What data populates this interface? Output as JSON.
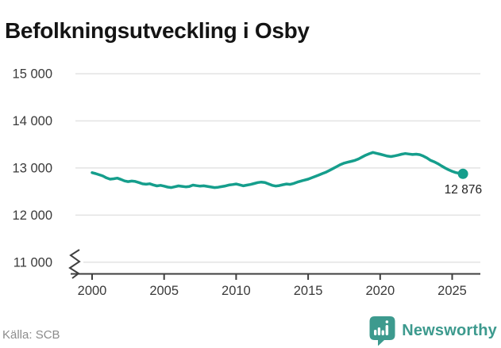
{
  "header": {
    "title": "Befolkningsutveckling i Osby"
  },
  "source": {
    "label": "Källa: SCB"
  },
  "branding": {
    "name": "Newsworthy",
    "logo_icon": "speech-bubble-bar-chart-icon"
  },
  "colors": {
    "line": "#159E8C",
    "end_dot": "#159E8C",
    "grid": "#E3E3E3",
    "axis": "#3F3F3F",
    "tick_label": "#3A3A3A",
    "end_label": "#222222",
    "title": "#141414",
    "source_text": "#8C8C8C",
    "brand_teal": "#3D9A8E"
  },
  "chart_data": {
    "type": "line",
    "title": "Befolkningsutveckling i Osby",
    "xlabel": "",
    "ylabel": "",
    "x_ticks": [
      2000,
      2005,
      2010,
      2015,
      2020,
      2025
    ],
    "y_ticks": [
      {
        "label": "15 000",
        "value": 15000
      },
      {
        "label": "14 000",
        "value": 14000
      },
      {
        "label": "13 000",
        "value": 13000
      },
      {
        "label": "12 000",
        "value": 12000
      },
      {
        "label": "11 000",
        "value": 11000
      }
    ],
    "ylim": [
      11000,
      15000
    ],
    "xlim": [
      2000,
      2025.75
    ],
    "axis_break": true,
    "grid": "horizontal",
    "legend": "none",
    "series": [
      {
        "x_start": 2000,
        "x_step": 0.25,
        "values": [
          12900,
          12880,
          12855,
          12830,
          12790,
          12762,
          12772,
          12785,
          12758,
          12726,
          12710,
          12722,
          12714,
          12690,
          12664,
          12655,
          12665,
          12640,
          12620,
          12632,
          12614,
          12595,
          12585,
          12601,
          12620,
          12610,
          12600,
          12606,
          12636,
          12625,
          12615,
          12621,
          12610,
          12596,
          12585,
          12592,
          12604,
          12618,
          12638,
          12648,
          12660,
          12642,
          12622,
          12636,
          12650,
          12670,
          12690,
          12701,
          12692,
          12662,
          12632,
          12616,
          12626,
          12645,
          12660,
          12652,
          12672,
          12700,
          12722,
          12742,
          12762,
          12792,
          12822,
          12852,
          12882,
          12912,
          12952,
          12992,
          13032,
          13072,
          13102,
          13122,
          13142,
          13162,
          13192,
          13232,
          13272,
          13302,
          13330,
          13312,
          13292,
          13272,
          13252,
          13242,
          13256,
          13272,
          13292,
          13306,
          13296,
          13286,
          13292,
          13282,
          13252,
          13212,
          13162,
          13132,
          13092,
          13046,
          13002,
          12962,
          12930,
          12902,
          12888,
          12876
        ]
      }
    ],
    "end_point": {
      "value": 12876,
      "label": "12 876"
    }
  }
}
